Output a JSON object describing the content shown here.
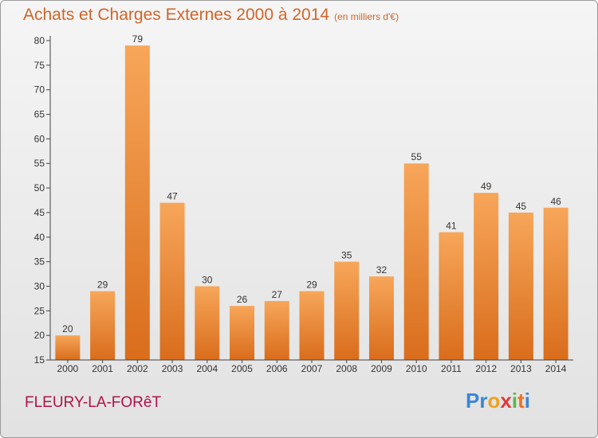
{
  "header": {
    "title": "Achats et Charges Externes 2000 à 2014",
    "subtitle": "(en milliers d'€)"
  },
  "footer": {
    "commune": "FLEURY-LA-FORêT",
    "logo_letters": [
      "P",
      "r",
      "o",
      "x",
      "i",
      "t",
      "i"
    ],
    "logo_colors": [
      "#3a86d8",
      "#3a86d8",
      "#f0a020",
      "#e03a3a",
      "#59b848",
      "#f07020",
      "#3a86d8"
    ]
  },
  "colors": {
    "bar_top": "#f7a65a",
    "bar_bottom": "#d96d1c",
    "axis": "#444444",
    "title": "#d0662a",
    "commune": "#b2104a"
  },
  "chart_data": {
    "type": "bar",
    "categories": [
      "2000",
      "2001",
      "2002",
      "2003",
      "2004",
      "2005",
      "2006",
      "2007",
      "2008",
      "2009",
      "2010",
      "2011",
      "2012",
      "2013",
      "2014"
    ],
    "values": [
      20,
      29,
      79,
      47,
      30,
      26,
      27,
      29,
      35,
      32,
      55,
      41,
      49,
      45,
      46
    ],
    "title": "Achats et Charges Externes 2000 à 2014",
    "subtitle": "(en milliers d'€)",
    "xlabel": "",
    "ylabel": "",
    "ylim": [
      15,
      80
    ],
    "yticks": [
      15,
      20,
      25,
      30,
      35,
      40,
      45,
      50,
      55,
      60,
      65,
      70,
      75,
      80
    ],
    "grid": false,
    "data_labels": true
  }
}
